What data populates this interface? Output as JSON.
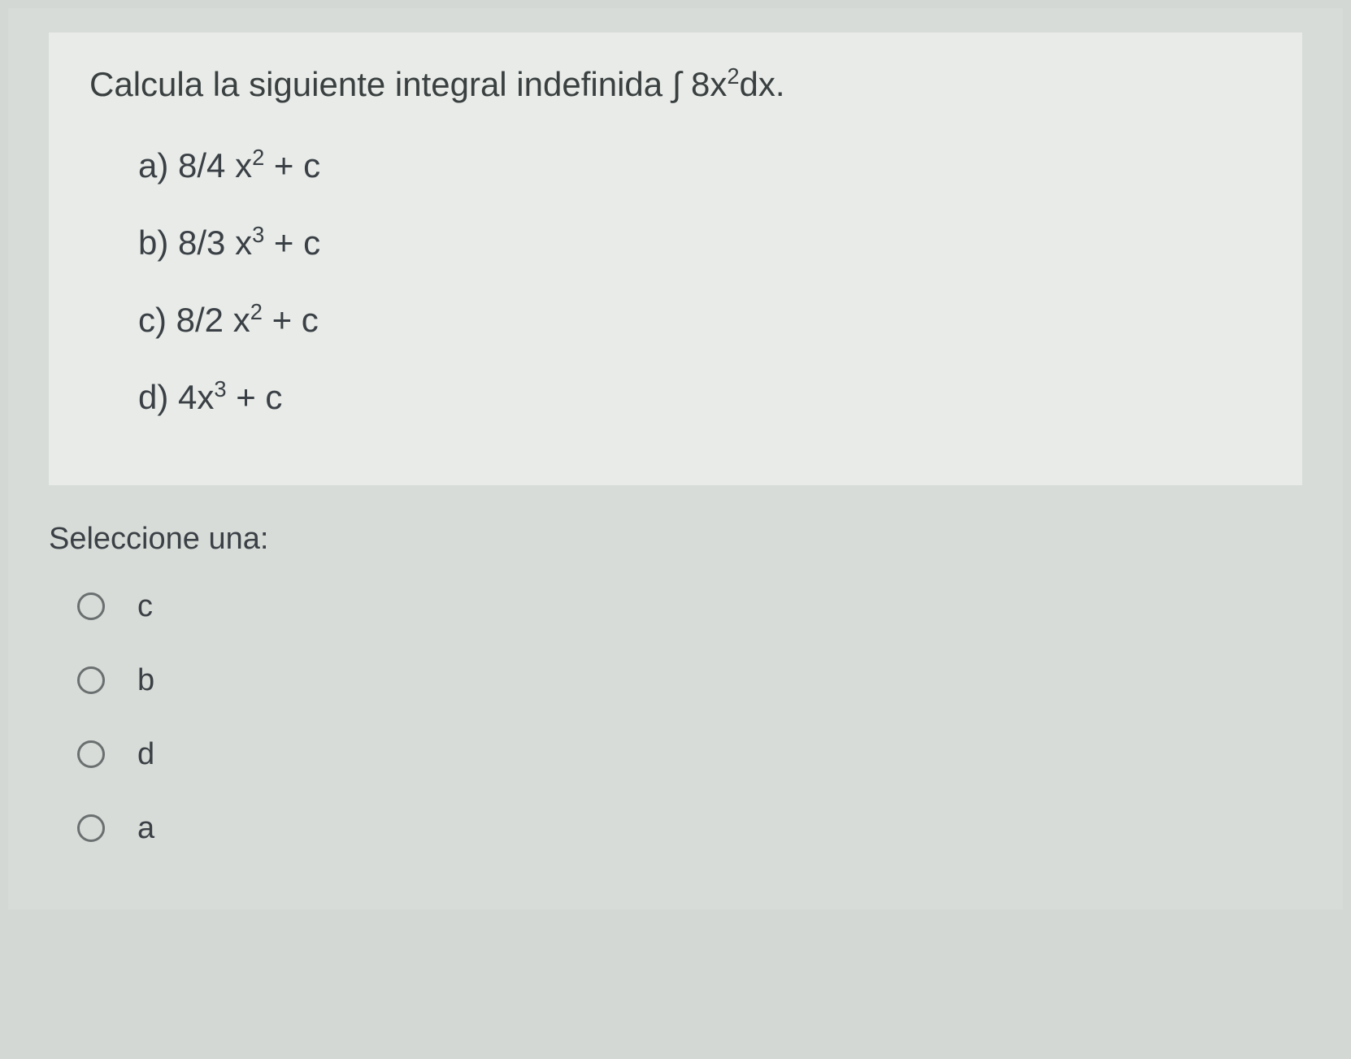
{
  "question": {
    "prompt": "Calcula la siguiente integral indefinida ∫ 8x²dx.",
    "options": [
      {
        "letter": "a)",
        "expression": "8/4 x² + c"
      },
      {
        "letter": "b)",
        "expression": "8/3 x³ + c"
      },
      {
        "letter": "c)",
        "expression": "8/2 x² + c"
      },
      {
        "letter": "d)",
        "expression": "4x³ + c"
      }
    ]
  },
  "selection": {
    "label": "Seleccione una:",
    "choices": [
      "c",
      "b",
      "d",
      "a"
    ]
  },
  "styling": {
    "background_color": "#d4d8d4",
    "card_background": "#e8ebe8",
    "text_color": "#3a4045",
    "radio_border_color": "#6a7070",
    "question_fontsize": 42,
    "option_fontsize": 42,
    "selection_fontsize": 38
  }
}
